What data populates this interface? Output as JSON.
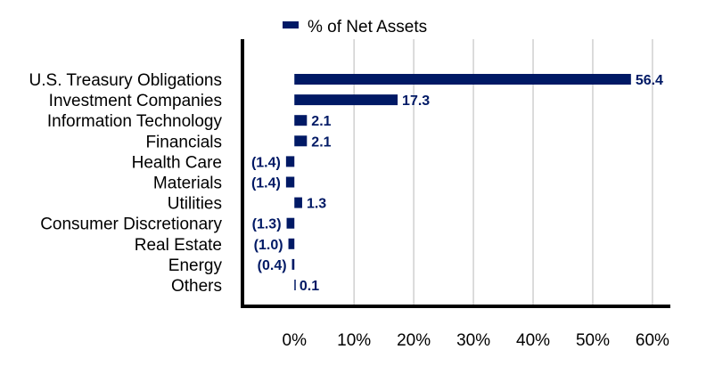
{
  "chart_data": {
    "type": "bar",
    "orientation": "horizontal",
    "categories": [
      "U.S. Treasury Obligations",
      "Investment Companies",
      "Information Technology",
      "Financials",
      "Health Care",
      "Materials",
      "Utilities",
      "Consumer Discretionary",
      "Real Estate",
      "Energy",
      "Others"
    ],
    "series": [
      {
        "name": "% of Net Assets",
        "values": [
          56.4,
          17.3,
          2.1,
          2.1,
          -1.4,
          -1.4,
          1.3,
          -1.3,
          -1.0,
          -0.4,
          0.1
        ],
        "labels": [
          "56.4",
          "17.3",
          "2.1",
          "2.1",
          "(1.4)",
          "(1.4)",
          "1.3",
          "(1.3)",
          "(1.0)",
          "(0.4)",
          "0.1"
        ]
      }
    ],
    "xticks": [
      0,
      10,
      20,
      30,
      40,
      50,
      60
    ],
    "xtick_labels": [
      "0%",
      "10%",
      "20%",
      "30%",
      "40%",
      "50%",
      "60%"
    ],
    "xlim": [
      -8.7,
      63
    ],
    "grid": true,
    "legend_position": "top",
    "colors": {
      "bar": "#001965",
      "grid": "#d0d0d0",
      "axis": "#000000"
    }
  }
}
